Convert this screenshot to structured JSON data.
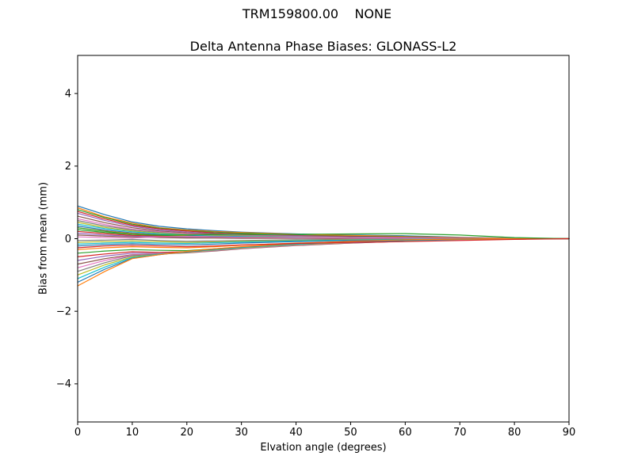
{
  "figure": {
    "background": "#ffffff",
    "frame_color": "#000000"
  },
  "chart_data": {
    "type": "line",
    "suptitle": "TRM159800.00    NONE",
    "title": "Delta Antenna Phase Biases: GLONASS-L2",
    "xlabel": "Elvation angle (degrees)",
    "ylabel": "Bias from mean (mm)",
    "xlim": [
      0,
      90
    ],
    "ylim": [
      -5.05,
      5.05
    ],
    "xticks": [
      0,
      10,
      20,
      30,
      40,
      50,
      60,
      70,
      80,
      90
    ],
    "yticks": [
      -4,
      -2,
      0,
      2,
      4
    ],
    "grid": false,
    "legend": "none",
    "palette": [
      "#1f77b4",
      "#ff7f0e",
      "#2ca02c",
      "#d62728",
      "#9467bd",
      "#8c564b",
      "#e377c2",
      "#7f7f7f",
      "#bcbd22",
      "#17becf"
    ],
    "x": [
      0,
      5,
      10,
      15,
      20,
      25,
      30,
      40,
      50,
      60,
      70,
      80,
      90
    ],
    "series": [
      {
        "name": "line-01",
        "values": [
          0.9,
          0.66,
          0.46,
          0.34,
          0.27,
          0.22,
          0.18,
          0.13,
          0.1,
          0.08,
          0.04,
          0.01,
          0.0
        ]
      },
      {
        "name": "line-02",
        "values": [
          0.85,
          0.6,
          0.43,
          0.3,
          0.24,
          0.2,
          0.17,
          0.12,
          0.09,
          0.06,
          0.03,
          0.01,
          0.0
        ]
      },
      {
        "name": "line-03",
        "values": [
          0.8,
          0.58,
          0.4,
          0.29,
          0.22,
          0.18,
          0.15,
          0.1,
          0.07,
          0.05,
          0.02,
          0.0,
          0.0
        ]
      },
      {
        "name": "line-04",
        "values": [
          0.75,
          0.54,
          0.37,
          0.27,
          0.21,
          0.16,
          0.13,
          0.09,
          0.06,
          0.04,
          0.02,
          0.0,
          0.0
        ]
      },
      {
        "name": "line-05",
        "values": [
          0.7,
          0.5,
          0.34,
          0.24,
          0.18,
          0.14,
          0.12,
          0.08,
          0.05,
          0.03,
          0.01,
          0.0,
          0.0
        ]
      },
      {
        "name": "line-06",
        "values": [
          0.62,
          0.44,
          0.3,
          0.21,
          0.16,
          0.13,
          0.1,
          0.07,
          0.04,
          0.02,
          0.01,
          0.0,
          0.0
        ]
      },
      {
        "name": "line-07",
        "values": [
          0.55,
          0.39,
          0.26,
          0.19,
          0.14,
          0.11,
          0.09,
          0.06,
          0.03,
          0.02,
          0.01,
          0.0,
          0.0
        ]
      },
      {
        "name": "line-08",
        "values": [
          0.5,
          0.35,
          0.24,
          0.17,
          0.12,
          0.1,
          0.08,
          0.05,
          0.03,
          0.01,
          0.0,
          0.0,
          0.0
        ]
      },
      {
        "name": "line-09",
        "values": [
          0.45,
          0.31,
          0.21,
          0.15,
          0.11,
          0.08,
          0.07,
          0.04,
          0.02,
          0.01,
          0.0,
          0.0,
          0.0
        ]
      },
      {
        "name": "line-10",
        "values": [
          0.4,
          0.28,
          0.19,
          0.13,
          0.1,
          0.07,
          0.06,
          0.04,
          0.02,
          0.01,
          0.0,
          0.0,
          0.0
        ]
      },
      {
        "name": "line-11",
        "values": [
          0.35,
          0.24,
          0.16,
          0.11,
          0.08,
          0.06,
          0.05,
          0.03,
          0.02,
          0.01,
          0.0,
          0.0,
          0.0
        ]
      },
      {
        "name": "line-12",
        "values": [
          0.3,
          0.21,
          0.14,
          0.1,
          0.07,
          0.05,
          0.04,
          0.03,
          0.02,
          0.01,
          0.0,
          0.0,
          0.0
        ]
      },
      {
        "name": "line-13",
        "values": [
          0.25,
          0.17,
          0.12,
          0.08,
          0.06,
          0.05,
          0.04,
          0.02,
          0.01,
          0.0,
          0.0,
          0.0,
          0.0
        ]
      },
      {
        "name": "line-14",
        "values": [
          0.2,
          0.14,
          0.09,
          0.07,
          0.05,
          0.04,
          0.03,
          0.02,
          0.01,
          0.0,
          0.0,
          0.0,
          0.0
        ]
      },
      {
        "name": "line-15",
        "values": [
          0.15,
          0.1,
          0.07,
          0.05,
          0.04,
          0.03,
          0.02,
          0.01,
          0.01,
          0.0,
          0.0,
          0.0,
          0.0
        ]
      },
      {
        "name": "line-16",
        "values": [
          0.1,
          0.07,
          0.05,
          0.03,
          0.02,
          0.02,
          0.01,
          0.01,
          0.0,
          0.0,
          0.0,
          0.0,
          0.0
        ]
      },
      {
        "name": "line-17",
        "values": [
          0.05,
          0.03,
          0.02,
          0.05,
          0.06,
          0.05,
          0.04,
          0.03,
          0.02,
          0.02,
          0.01,
          0.0,
          0.0
        ]
      },
      {
        "name": "line-18",
        "values": [
          -0.05,
          -0.04,
          -0.02,
          -0.05,
          -0.07,
          -0.06,
          -0.05,
          -0.03,
          -0.02,
          -0.01,
          0.0,
          0.0,
          0.0
        ]
      },
      {
        "name": "line-19",
        "values": [
          -0.1,
          -0.08,
          -0.06,
          -0.08,
          -0.1,
          -0.09,
          -0.07,
          -0.05,
          -0.03,
          -0.02,
          -0.01,
          0.0,
          0.0
        ]
      },
      {
        "name": "line-20",
        "values": [
          -0.15,
          -0.12,
          -0.1,
          -0.12,
          -0.13,
          -0.11,
          -0.09,
          -0.06,
          -0.04,
          -0.02,
          -0.01,
          0.0,
          0.0
        ]
      },
      {
        "name": "line-21",
        "values": [
          -0.2,
          -0.16,
          -0.14,
          -0.16,
          -0.17,
          -0.15,
          -0.12,
          -0.08,
          -0.05,
          -0.03,
          -0.01,
          0.0,
          0.0
        ]
      },
      {
        "name": "line-22",
        "values": [
          -0.3,
          -0.25,
          -0.22,
          -0.24,
          -0.25,
          -0.22,
          -0.18,
          -0.12,
          -0.08,
          -0.05,
          -0.02,
          -0.01,
          0.0
        ]
      },
      {
        "name": "line-23",
        "values": [
          -0.4,
          -0.34,
          -0.3,
          -0.32,
          -0.33,
          -0.28,
          -0.23,
          -0.15,
          -0.1,
          -0.06,
          -0.03,
          -0.01,
          0.0
        ]
      },
      {
        "name": "line-24",
        "values": [
          -0.5,
          -0.42,
          -0.36,
          -0.38,
          -0.36,
          -0.31,
          -0.26,
          -0.17,
          -0.11,
          -0.07,
          -0.03,
          -0.01,
          0.0
        ]
      },
      {
        "name": "line-25",
        "values": [
          -0.6,
          -0.48,
          -0.4,
          -0.41,
          -0.38,
          -0.33,
          -0.27,
          -0.18,
          -0.12,
          -0.07,
          -0.03,
          -0.01,
          0.0
        ]
      },
      {
        "name": "line-26",
        "values": [
          -0.7,
          -0.55,
          -0.44,
          -0.42,
          -0.39,
          -0.34,
          -0.28,
          -0.19,
          -0.12,
          -0.07,
          -0.03,
          -0.01,
          0.0
        ]
      },
      {
        "name": "line-27",
        "values": [
          -0.8,
          -0.6,
          -0.45,
          -0.42,
          -0.38,
          -0.33,
          -0.27,
          -0.18,
          -0.11,
          -0.06,
          -0.03,
          -0.01,
          0.0
        ]
      },
      {
        "name": "line-28",
        "values": [
          -0.9,
          -0.66,
          -0.47,
          -0.42,
          -0.37,
          -0.32,
          -0.26,
          -0.17,
          -0.1,
          -0.06,
          -0.02,
          -0.01,
          0.0
        ]
      },
      {
        "name": "line-29",
        "values": [
          -1.0,
          -0.72,
          -0.5,
          -0.43,
          -0.37,
          -0.31,
          -0.25,
          -0.16,
          -0.1,
          -0.05,
          -0.02,
          0.0,
          0.0
        ]
      },
      {
        "name": "line-30",
        "values": [
          -1.1,
          -0.78,
          -0.52,
          -0.43,
          -0.36,
          -0.3,
          -0.24,
          -0.15,
          -0.09,
          -0.05,
          -0.02,
          0.0,
          0.0
        ]
      },
      {
        "name": "line-31",
        "values": [
          -1.2,
          -0.84,
          -0.54,
          -0.44,
          -0.36,
          -0.29,
          -0.23,
          -0.14,
          -0.08,
          -0.04,
          -0.01,
          0.0,
          0.0
        ]
      },
      {
        "name": "line-32",
        "values": [
          -1.3,
          -0.9,
          -0.55,
          -0.44,
          -0.35,
          -0.28,
          -0.22,
          -0.13,
          -0.07,
          -0.03,
          -0.01,
          0.0,
          0.0
        ]
      },
      {
        "name": "line-33",
        "values": [
          0.3,
          0.2,
          0.12,
          0.1,
          0.1,
          0.12,
          0.12,
          0.12,
          0.13,
          0.14,
          0.1,
          0.03,
          0.0
        ]
      },
      {
        "name": "line-34",
        "values": [
          -0.25,
          -0.2,
          -0.18,
          -0.2,
          -0.22,
          -0.2,
          -0.17,
          -0.13,
          -0.1,
          -0.08,
          -0.05,
          -0.02,
          0.0
        ]
      }
    ]
  }
}
